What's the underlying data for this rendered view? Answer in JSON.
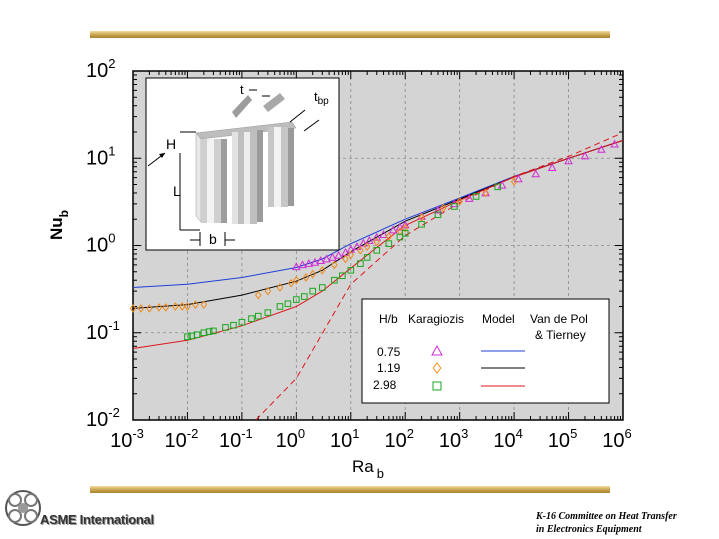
{
  "colors": {
    "rule": "#c8a24c",
    "plot_bg": "#d4d4d4",
    "series_0_75": "#1f3fd8",
    "series_1_19": "#000000",
    "series_2_98": "#e0161b",
    "karagiozis_0_75": "#d22bd6",
    "karagiozis_1_19": "#f08a18",
    "karagiozis_2_98": "#19a81e",
    "vandepol": "#e0161b"
  },
  "chart_data": {
    "type": "line",
    "xscale": "log",
    "yscale": "log",
    "xlim": [
      0.001,
      1000000
    ],
    "ylim": [
      0.01,
      100
    ],
    "grid": true,
    "xlabel": "Ra",
    "xlabel_sub": "b",
    "ylabel": "Nu",
    "ylabel_sub": "b",
    "x_ticks": [
      {
        "base": "10",
        "exp": "-3"
      },
      {
        "base": "10",
        "exp": "-2"
      },
      {
        "base": "10",
        "exp": "-1"
      },
      {
        "base": "10",
        "exp": "0"
      },
      {
        "base": "10",
        "exp": "1"
      },
      {
        "base": "10",
        "exp": "2"
      },
      {
        "base": "10",
        "exp": "3"
      },
      {
        "base": "10",
        "exp": "4"
      },
      {
        "base": "10",
        "exp": "5"
      },
      {
        "base": "10",
        "exp": "6"
      }
    ],
    "y_ticks": [
      {
        "base": "10",
        "exp": "-2"
      },
      {
        "base": "10",
        "exp": "-1"
      },
      {
        "base": "10",
        "exp": "0"
      },
      {
        "base": "10",
        "exp": "1"
      },
      {
        "base": "10",
        "exp": "2"
      }
    ],
    "legend": {
      "placement": "lower-right",
      "headers": [
        "H/b",
        "Karagiozis",
        "Model",
        "Van de Pol",
        "& Tierney"
      ],
      "rows": [
        {
          "label": "0.75",
          "marker": "triangle"
        },
        {
          "label": "1.19",
          "marker": "diamond"
        },
        {
          "label": "2.98",
          "marker": "square"
        }
      ]
    },
    "inset": {
      "labels": {
        "t": "t",
        "tbp": "t",
        "tbp_sub": "bp",
        "H": "H",
        "L": "L",
        "b": "b"
      }
    },
    "series": [
      {
        "name": "0.75",
        "kind": "model",
        "x": [
          0.001,
          0.01,
          0.1,
          1,
          3,
          10,
          100,
          1000,
          10000,
          100000,
          1000000
        ],
        "y": [
          0.33,
          0.36,
          0.43,
          0.56,
          0.7,
          1.05,
          2.0,
          3.5,
          6.2,
          10.0,
          16.0
        ]
      },
      {
        "name": "1.19",
        "kind": "model",
        "x": [
          0.001,
          0.01,
          0.1,
          1,
          3,
          10,
          100,
          1000,
          10000,
          100000,
          1000000
        ],
        "y": [
          0.19,
          0.21,
          0.27,
          0.39,
          0.52,
          0.85,
          1.9,
          3.4,
          6.1,
          10.0,
          16.0
        ]
      },
      {
        "name": "2.98",
        "kind": "model",
        "x": [
          0.001,
          0.01,
          0.1,
          1,
          3,
          10,
          30,
          100,
          1000,
          10000,
          100000,
          1000000
        ],
        "y": [
          0.066,
          0.082,
          0.12,
          0.2,
          0.3,
          0.55,
          0.95,
          1.7,
          3.3,
          6.1,
          10.0,
          16.0
        ]
      },
      {
        "name": "Van de Pol & Tierney",
        "kind": "vandepol",
        "x": [
          0.18,
          1,
          10,
          100,
          1000,
          10000,
          100000,
          800000
        ],
        "y": [
          0.01,
          0.03,
          0.36,
          1.3,
          3.1,
          6.2,
          10.5,
          18.5
        ]
      },
      {
        "name": "0.75",
        "kind": "karagiozis",
        "marker": "triangle",
        "x": [
          1,
          1.3,
          1.7,
          2.2,
          2.8,
          3.6,
          4.6,
          6,
          8,
          10,
          13,
          17,
          22,
          30,
          40,
          60,
          80,
          100,
          200,
          400,
          800,
          1500,
          3000,
          6000,
          12000,
          25000,
          50000,
          100000,
          200000,
          400000,
          700000
        ],
        "y": [
          0.57,
          0.6,
          0.62,
          0.64,
          0.67,
          0.7,
          0.73,
          0.77,
          0.83,
          0.9,
          0.97,
          1.06,
          1.14,
          1.24,
          1.33,
          1.5,
          1.62,
          1.72,
          2.15,
          2.55,
          3.0,
          3.45,
          4.0,
          4.9,
          5.8,
          6.6,
          7.8,
          9.3,
          10.6,
          12.6,
          14.5
        ]
      },
      {
        "name": "1.19",
        "kind": "karagiozis",
        "marker": "diamond",
        "x": [
          0.001,
          0.0014,
          0.002,
          0.003,
          0.004,
          0.006,
          0.008,
          0.01,
          0.014,
          0.02,
          0.2,
          0.3,
          0.5,
          0.8,
          1,
          1.5,
          2,
          3,
          5,
          8,
          10,
          15,
          20,
          30,
          50,
          80,
          100,
          200,
          500,
          1000,
          3000,
          10000
        ],
        "y": [
          0.19,
          0.19,
          0.19,
          0.195,
          0.195,
          0.2,
          0.2,
          0.2,
          0.21,
          0.21,
          0.27,
          0.3,
          0.33,
          0.37,
          0.4,
          0.43,
          0.47,
          0.52,
          0.6,
          0.7,
          0.78,
          0.88,
          0.97,
          1.1,
          1.27,
          1.45,
          1.58,
          2.1,
          2.7,
          3.2,
          4.0,
          5.4
        ]
      },
      {
        "name": "2.98",
        "kind": "karagiozis",
        "marker": "square",
        "x": [
          0.01,
          0.012,
          0.015,
          0.02,
          0.025,
          0.03,
          0.05,
          0.07,
          0.1,
          0.15,
          0.2,
          0.3,
          0.5,
          0.7,
          1,
          1.4,
          2,
          3,
          5,
          7,
          10,
          15,
          20,
          30,
          50,
          80,
          100,
          200,
          400,
          800,
          2000,
          5000
        ],
        "y": [
          0.09,
          0.092,
          0.095,
          0.1,
          0.103,
          0.105,
          0.115,
          0.122,
          0.132,
          0.145,
          0.155,
          0.17,
          0.2,
          0.215,
          0.24,
          0.26,
          0.3,
          0.33,
          0.4,
          0.45,
          0.52,
          0.62,
          0.73,
          0.88,
          1.05,
          1.25,
          1.38,
          1.75,
          2.25,
          2.8,
          3.65,
          4.7
        ]
      }
    ]
  },
  "footer": {
    "logo_text": "ASME International",
    "caption_line1": "K-16 Committee on Heat Transfer",
    "caption_line2": "in Electronics Equipment"
  }
}
